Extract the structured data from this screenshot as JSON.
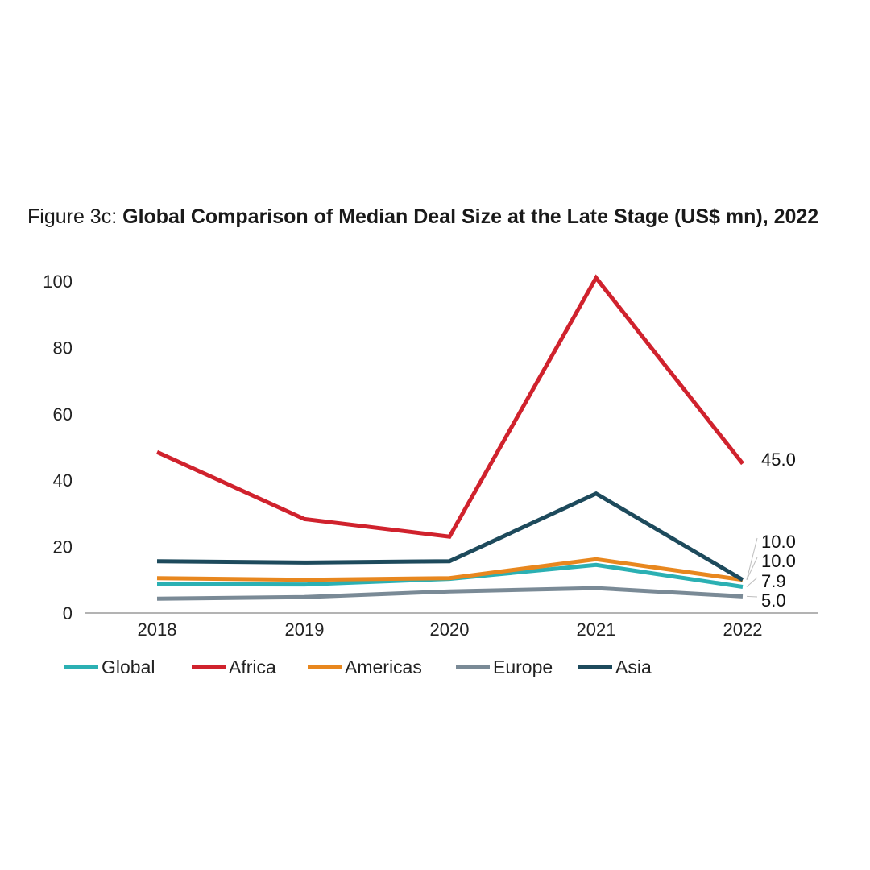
{
  "title": {
    "prefix": "Figure 3c:",
    "text": "Global Comparison of Median Deal Size at the Late Stage (US$ mn), 2022"
  },
  "chart_data": {
    "type": "line",
    "x": [
      "2018",
      "2019",
      "2020",
      "2021",
      "2022"
    ],
    "ylim": [
      0,
      100
    ],
    "yticks": [
      0,
      20,
      40,
      60,
      80,
      100
    ],
    "grid": false,
    "legend_position": "bottom",
    "series": [
      {
        "name": "Global",
        "color": "#2bb0b3",
        "values": [
          8.7,
          8.6,
          10.3,
          14.5,
          7.9
        ]
      },
      {
        "name": "Africa",
        "color": "#d0222d",
        "values": [
          48.5,
          28.3,
          23.0,
          101.0,
          45.0
        ]
      },
      {
        "name": "Americas",
        "color": "#e8871e",
        "values": [
          10.5,
          10.0,
          10.5,
          16.2,
          10.0
        ]
      },
      {
        "name": "Europe",
        "color": "#7a8a96",
        "values": [
          4.3,
          4.8,
          6.5,
          7.5,
          5.0
        ]
      },
      {
        "name": "Asia",
        "color": "#1d4a5c",
        "values": [
          15.6,
          15.2,
          15.6,
          36.0,
          10.0
        ]
      }
    ],
    "end_labels": [
      "45.0",
      "10.0",
      "10.0",
      "7.9",
      "5.0"
    ]
  }
}
